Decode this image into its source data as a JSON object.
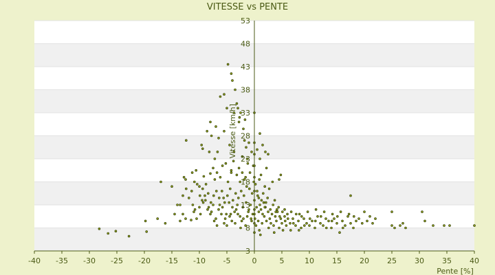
{
  "chart_data": {
    "type": "scatter",
    "title": "VITESSE vs PENTE",
    "xlabel": "Pente [%]",
    "ylabel": "Vitesse [km/h]",
    "xlim": [
      -40,
      40
    ],
    "ylim": [
      3,
      53
    ],
    "x_ticks": [
      -40,
      -35,
      -30,
      -25,
      -20,
      -15,
      -10,
      -5,
      0,
      5,
      10,
      15,
      20,
      25,
      30,
      35,
      40
    ],
    "y_ticks": [
      3,
      8,
      13,
      18,
      23,
      28,
      33,
      38,
      43,
      48,
      53
    ],
    "grid": true,
    "legend": "none",
    "colors": {
      "point": "#8a9a1e",
      "point_stroke": "#2f3a08",
      "band": "#f0f0f0",
      "plot_bg": "#ffffff",
      "text": "#4a5a14",
      "axis": "#4a5a14",
      "page_bg": "#eef2cc"
    },
    "points": [
      [
        -28.2,
        7.8
      ],
      [
        -26.6,
        6.8
      ],
      [
        -25.2,
        7.3
      ],
      [
        -22.8,
        6.2
      ],
      [
        -19.8,
        9.5
      ],
      [
        -19.6,
        7.2
      ],
      [
        -17.6,
        10.0
      ],
      [
        -16.2,
        9.0
      ],
      [
        -17.0,
        18.0
      ],
      [
        -14.0,
        13.0
      ],
      [
        -13.0,
        11.0
      ],
      [
        -13.5,
        9.5
      ],
      [
        -12.5,
        10.0
      ],
      [
        -11.5,
        9.7
      ],
      [
        -11.0,
        11.5
      ],
      [
        -10.5,
        10.0
      ],
      [
        -10.0,
        12.5
      ],
      [
        -9.5,
        14.0
      ],
      [
        -9.0,
        15.0
      ],
      [
        -8.5,
        12.0
      ],
      [
        -8.0,
        11.0
      ],
      [
        -7.5,
        13.0
      ],
      [
        -7.0,
        10.0
      ],
      [
        -6.5,
        12.0
      ],
      [
        -6.0,
        11.0
      ],
      [
        -5.5,
        9.0
      ],
      [
        -5.0,
        8.5
      ],
      [
        -4.5,
        10.5
      ],
      [
        -4.0,
        12.5
      ],
      [
        -3.5,
        9.0
      ],
      [
        -3.0,
        11.0
      ],
      [
        -2.5,
        8.0
      ],
      [
        -2.0,
        10.0
      ],
      [
        -1.5,
        13.5
      ],
      [
        -1.0,
        12.0
      ],
      [
        -0.5,
        9.5
      ],
      [
        -12.8,
        19.0
      ],
      [
        -12.5,
        18.5
      ],
      [
        -11.3,
        20.0
      ],
      [
        -10.6,
        20.5
      ],
      [
        -10.0,
        17.0
      ],
      [
        -9.2,
        19.2
      ],
      [
        -8.8,
        17.5
      ],
      [
        -8.0,
        19.8
      ],
      [
        -7.5,
        21.0
      ],
      [
        -7.2,
        18.5
      ],
      [
        -6.8,
        20.0
      ],
      [
        -6.2,
        19.0
      ],
      [
        -5.8,
        21.5
      ],
      [
        -5.2,
        22.0
      ],
      [
        -4.8,
        18.0
      ],
      [
        -4.2,
        20.5
      ],
      [
        -3.8,
        22.5
      ],
      [
        -3.2,
        19.5
      ],
      [
        -2.8,
        21.0
      ],
      [
        -2.2,
        20.0
      ],
      [
        -1.8,
        18.5
      ],
      [
        -1.2,
        22.0
      ],
      [
        -0.8,
        20.0
      ],
      [
        -0.2,
        21.5
      ],
      [
        -12.4,
        27.0
      ],
      [
        -9.6,
        26.0
      ],
      [
        -9.4,
        25.2
      ],
      [
        -8.6,
        29.0
      ],
      [
        -8.0,
        31.0
      ],
      [
        -7.8,
        28.0
      ],
      [
        -7.0,
        30.0
      ],
      [
        -6.2,
        36.5
      ],
      [
        -5.5,
        37.0
      ],
      [
        -5.0,
        34.0
      ],
      [
        -4.8,
        43.5
      ],
      [
        -4.2,
        41.5
      ],
      [
        -4.0,
        40.0
      ],
      [
        -3.5,
        38.0
      ],
      [
        -3.2,
        35.0
      ],
      [
        -3.0,
        34.0
      ],
      [
        -2.5,
        33.0
      ],
      [
        -2.0,
        29.5
      ],
      [
        -1.8,
        27.0
      ],
      [
        -1.5,
        25.5
      ],
      [
        -1.0,
        26.5
      ],
      [
        -0.5,
        24.5
      ],
      [
        0.0,
        33.0
      ],
      [
        1.0,
        28.5
      ],
      [
        1.5,
        26.0
      ],
      [
        2.0,
        24.5
      ],
      [
        2.5,
        24.0
      ],
      [
        -5.5,
        29.0
      ],
      [
        -6.5,
        27.5
      ],
      [
        -2.8,
        31.0
      ],
      [
        -2.2,
        23.5
      ],
      [
        -1.3,
        23.0
      ],
      [
        0.5,
        25.0
      ],
      [
        1.0,
        23.0
      ],
      [
        -4.5,
        26.0
      ],
      [
        -3.7,
        24.5
      ],
      [
        0.2,
        17.5
      ],
      [
        0.5,
        16.0
      ],
      [
        0.8,
        14.5
      ],
      [
        1.0,
        13.0
      ],
      [
        1.2,
        12.0
      ],
      [
        1.5,
        11.0
      ],
      [
        1.8,
        10.5
      ],
      [
        2.0,
        12.5
      ],
      [
        2.2,
        9.5
      ],
      [
        2.5,
        11.5
      ],
      [
        2.8,
        10.0
      ],
      [
        3.0,
        9.0
      ],
      [
        3.2,
        11.0
      ],
      [
        3.5,
        8.5
      ],
      [
        3.8,
        10.5
      ],
      [
        4.0,
        9.5
      ],
      [
        4.2,
        11.5
      ],
      [
        4.5,
        8.0
      ],
      [
        4.8,
        10.0
      ],
      [
        5.0,
        9.0
      ],
      [
        5.2,
        7.5
      ],
      [
        5.5,
        10.5
      ],
      [
        5.8,
        8.5
      ],
      [
        6.0,
        11.0
      ],
      [
        6.5,
        9.0
      ],
      [
        7.0,
        10.0
      ],
      [
        7.5,
        8.5
      ],
      [
        8.0,
        9.5
      ],
      [
        8.5,
        8.0
      ],
      [
        9.0,
        10.0
      ],
      [
        9.5,
        9.0
      ],
      [
        10.0,
        8.5
      ],
      [
        10.5,
        9.5
      ],
      [
        11.0,
        8.0
      ],
      [
        11.5,
        10.5
      ],
      [
        12.0,
        9.0
      ],
      [
        12.5,
        8.5
      ],
      [
        13.0,
        10.0
      ],
      [
        13.5,
        9.5
      ],
      [
        14.0,
        8.0
      ],
      [
        14.5,
        10.0
      ],
      [
        15.0,
        9.0
      ],
      [
        15.5,
        7.0
      ],
      [
        16.0,
        9.5
      ],
      [
        16.5,
        8.5
      ],
      [
        17.0,
        10.5
      ],
      [
        17.5,
        9.0
      ],
      [
        18.0,
        8.0
      ],
      [
        18.5,
        9.5
      ],
      [
        19.0,
        10.0
      ],
      [
        20.0,
        11.5
      ],
      [
        20.5,
        9.5
      ],
      [
        21.0,
        10.5
      ],
      [
        21.5,
        9.0
      ],
      [
        22.0,
        10.0
      ],
      [
        25.0,
        8.5
      ],
      [
        25.5,
        8.0
      ],
      [
        26.5,
        8.5
      ],
      [
        27.0,
        9.0
      ],
      [
        27.5,
        8.0
      ],
      [
        30.5,
        11.5
      ],
      [
        31.0,
        9.5
      ],
      [
        32.5,
        8.5
      ],
      [
        34.5,
        8.5
      ],
      [
        35.5,
        8.5
      ],
      [
        40.0,
        8.5
      ],
      [
        25.0,
        11.5
      ],
      [
        17.5,
        15.0
      ],
      [
        0.6,
        15.0
      ],
      [
        1.7,
        13.5
      ],
      [
        2.7,
        16.5
      ],
      [
        3.7,
        14.0
      ],
      [
        4.5,
        18.5
      ],
      [
        4.8,
        19.5
      ],
      [
        2.2,
        21.0
      ],
      [
        1.2,
        19.5
      ],
      [
        3.3,
        18.0
      ],
      [
        0.4,
        12.5
      ],
      [
        0.8,
        11.5
      ],
      [
        1.4,
        9.0
      ],
      [
        2.6,
        8.0
      ],
      [
        3.6,
        7.0
      ],
      [
        4.4,
        12.5
      ],
      [
        5.5,
        12.0
      ],
      [
        6.7,
        11.5
      ],
      [
        8.2,
        11.0
      ],
      [
        9.7,
        11.5
      ],
      [
        11.2,
        12.0
      ],
      [
        12.7,
        11.5
      ],
      [
        14.2,
        11.0
      ],
      [
        15.7,
        11.5
      ],
      [
        17.2,
        11.0
      ],
      [
        -0.4,
        15.5
      ],
      [
        -0.9,
        16.5
      ],
      [
        -1.4,
        17.0
      ],
      [
        -1.9,
        15.0
      ],
      [
        -2.4,
        16.0
      ],
      [
        -2.9,
        14.5
      ],
      [
        -3.4,
        15.5
      ],
      [
        -3.9,
        14.0
      ],
      [
        -4.4,
        16.5
      ],
      [
        -4.9,
        15.0
      ],
      [
        -5.4,
        13.5
      ],
      [
        -5.9,
        16.0
      ],
      [
        -6.4,
        14.5
      ],
      [
        -6.9,
        16.0
      ],
      [
        -7.4,
        15.0
      ],
      [
        -7.9,
        13.5
      ],
      [
        -8.4,
        15.5
      ],
      [
        -8.9,
        14.0
      ],
      [
        -9.4,
        16.5
      ],
      [
        -9.9,
        15.0
      ],
      [
        -10.4,
        17.5
      ],
      [
        -10.9,
        18.0
      ],
      [
        -11.4,
        16.0
      ],
      [
        -11.9,
        14.5
      ],
      [
        -12.4,
        16.5
      ],
      [
        -13.0,
        15.0
      ],
      [
        -13.5,
        13.0
      ],
      [
        -14.5,
        11.0
      ],
      [
        -0.3,
        11.0
      ],
      [
        -0.6,
        10.0
      ],
      [
        -1.1,
        11.5
      ],
      [
        -1.6,
        8.5
      ],
      [
        -2.1,
        12.5
      ],
      [
        -2.6,
        10.5
      ],
      [
        -3.1,
        13.0
      ],
      [
        -3.6,
        11.5
      ],
      [
        -4.1,
        9.5
      ],
      [
        -4.6,
        13.5
      ],
      [
        -5.1,
        11.0
      ],
      [
        -5.6,
        14.5
      ],
      [
        0.1,
        10.0
      ],
      [
        0.3,
        8.5
      ],
      [
        0.7,
        9.5
      ],
      [
        0.9,
        7.5
      ],
      [
        1.1,
        6.5
      ],
      [
        1.3,
        14.0
      ],
      [
        1.6,
        15.5
      ],
      [
        1.9,
        12.5
      ],
      [
        2.1,
        13.5
      ],
      [
        2.4,
        14.5
      ],
      [
        2.9,
        12.0
      ],
      [
        3.4,
        13.0
      ],
      [
        3.9,
        11.5
      ],
      [
        4.1,
        12.0
      ],
      [
        4.6,
        10.5
      ],
      [
        5.1,
        11.5
      ],
      [
        5.6,
        9.5
      ],
      [
        6.1,
        10.0
      ],
      [
        6.6,
        7.5
      ],
      [
        7.1,
        9.0
      ],
      [
        7.6,
        11.0
      ],
      [
        8.1,
        7.5
      ],
      [
        8.6,
        10.5
      ],
      [
        9.1,
        8.5
      ],
      [
        10.1,
        10.0
      ],
      [
        11.1,
        9.5
      ],
      [
        12.1,
        10.5
      ],
      [
        13.1,
        8.0
      ],
      [
        14.1,
        9.5
      ],
      [
        15.1,
        10.5
      ],
      [
        16.1,
        8.0
      ],
      [
        18.1,
        10.5
      ],
      [
        19.6,
        9.0
      ],
      [
        -15.0,
        17.0
      ],
      [
        -11.2,
        13.0
      ],
      [
        -10.8,
        12.0
      ],
      [
        -9.8,
        11.0
      ],
      [
        -9.3,
        13.5
      ],
      [
        -8.3,
        12.5
      ],
      [
        -7.8,
        11.5
      ],
      [
        -7.3,
        9.5
      ],
      [
        -6.8,
        8.5
      ],
      [
        -6.3,
        13.0
      ],
      [
        -5.8,
        12.5
      ],
      [
        -5.3,
        10.0
      ],
      [
        -4.3,
        11.0
      ],
      [
        -3.3,
        12.0
      ],
      [
        -2.3,
        9.5
      ],
      [
        -1.3,
        10.5
      ],
      [
        -0.7,
        13.0
      ],
      [
        0.0,
        12.0
      ],
      [
        0.0,
        9.0
      ],
      [
        0.0,
        14.0
      ],
      [
        0.0,
        11.0
      ],
      [
        0.0,
        16.0
      ],
      [
        0.0,
        7.0
      ],
      [
        0.0,
        19.0
      ],
      [
        0.0,
        21.5
      ],
      [
        0.0,
        24.0
      ],
      [
        0.0,
        26.5
      ],
      [
        -1.7,
        31.5
      ],
      [
        -2.7,
        32.0
      ],
      [
        -3.7,
        33.0
      ],
      [
        -6.7,
        24.5
      ],
      [
        -7.2,
        23.0
      ],
      [
        -8.2,
        24.5
      ],
      [
        -4.2,
        20.0
      ],
      [
        -2.6,
        18.0
      ],
      [
        -1.6,
        19.0
      ],
      [
        -0.1,
        18.0
      ],
      [
        0.9,
        18.5
      ],
      [
        1.9,
        17.0
      ]
    ]
  }
}
